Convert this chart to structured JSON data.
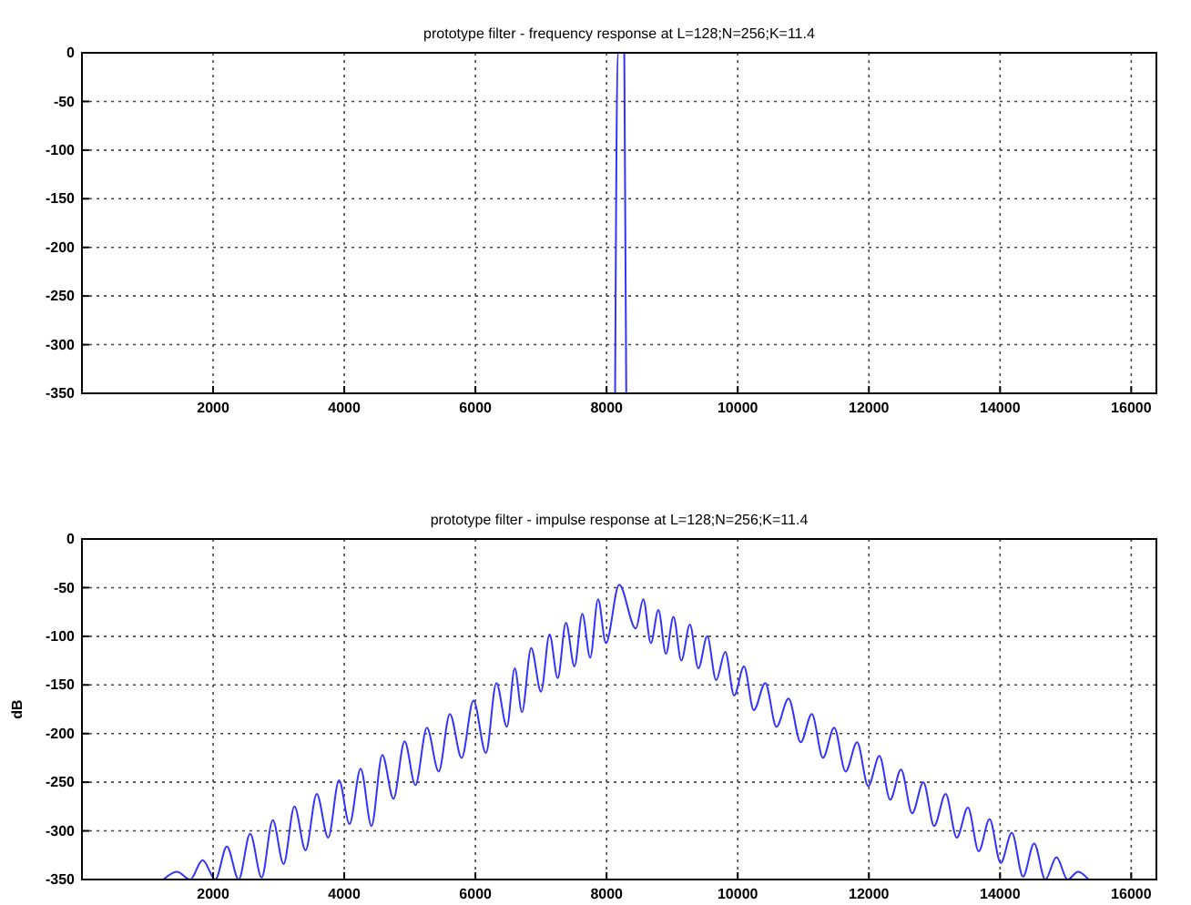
{
  "chart_data": [
    {
      "type": "line",
      "title": "prototype filter - frequency response at  L=128;N=256;K=11.4",
      "xlim": [
        0,
        16384
      ],
      "xticks": [
        2000,
        4000,
        6000,
        8000,
        10000,
        12000,
        14000,
        16000
      ],
      "ylim": [
        -350,
        0
      ],
      "yticks": [
        -350,
        -300,
        -250,
        -200,
        -150,
        -100,
        -50,
        0
      ],
      "grid": true,
      "line_style": "solid",
      "marker": "none",
      "series": [
        {
          "color": "#3333ff",
          "x": [
            8130,
            8170,
            8270,
            8300
          ],
          "values": [
            -350,
            0,
            0,
            -350
          ]
        }
      ]
    },
    {
      "type": "line",
      "title": "prototype filter - impulse response at  L=128;N=256;K=11.4",
      "ylabel": "dB",
      "xlim": [
        0,
        16384
      ],
      "xticks": [
        2000,
        4000,
        6000,
        8000,
        10000,
        12000,
        14000,
        16000
      ],
      "ylim": [
        -350,
        0
      ],
      "yticks": [
        -350,
        -300,
        -250,
        -200,
        -150,
        -100,
        -50,
        0
      ],
      "grid": true,
      "line_style": "solid",
      "marker": "none",
      "series": [
        {
          "color": "#3333ff",
          "x": [
            1240,
            1450,
            1650,
            1840,
            2035,
            2210,
            2390,
            2565,
            2740,
            2910,
            3075,
            3240,
            3410,
            3580,
            3755,
            3920,
            4080,
            4250,
            4415,
            4580,
            4750,
            4920,
            5085,
            5260,
            5440,
            5610,
            5790,
            5970,
            6160,
            6320,
            6480,
            6600,
            6710,
            6850,
            7000,
            7130,
            7255,
            7380,
            7510,
            7630,
            7750,
            7870,
            7990,
            8192,
            8445,
            8560,
            8675,
            8790,
            8905,
            9020,
            9140,
            9270,
            9400,
            9535,
            9670,
            9810,
            9945,
            10095,
            10245,
            10420,
            10590,
            10775,
            10960,
            11130,
            11300,
            11470,
            11645,
            11820,
            11990,
            12160,
            12325,
            12490,
            12660,
            12830,
            12995,
            13170,
            13340,
            13510,
            13675,
            13840,
            14010,
            14180,
            14350,
            14520,
            14690,
            14860,
            15030,
            15190,
            15350
          ],
          "values": [
            -350,
            -342,
            -350,
            -330,
            -350,
            -316,
            -350,
            -303,
            -348,
            -289,
            -334,
            -275,
            -320,
            -262,
            -307,
            -248,
            -293,
            -236,
            -295,
            -222,
            -267,
            -208,
            -253,
            -194,
            -239,
            -180,
            -225,
            -166,
            -220,
            -148,
            -193,
            -133,
            -178,
            -112,
            -157,
            -98,
            -143,
            -86,
            -131,
            -77,
            -122,
            -62,
            -107,
            -47,
            -92,
            -62,
            -107,
            -73,
            -118,
            -80,
            -125,
            -88,
            -133,
            -100,
            -145,
            -116,
            -161,
            -131,
            -176,
            -148,
            -193,
            -164,
            -209,
            -180,
            -225,
            -194,
            -239,
            -209,
            -254,
            -223,
            -268,
            -237,
            -282,
            -250,
            -295,
            -262,
            -307,
            -276,
            -321,
            -288,
            -333,
            -302,
            -347,
            -313,
            -350,
            -327,
            -350,
            -342,
            -350
          ]
        }
      ]
    }
  ]
}
